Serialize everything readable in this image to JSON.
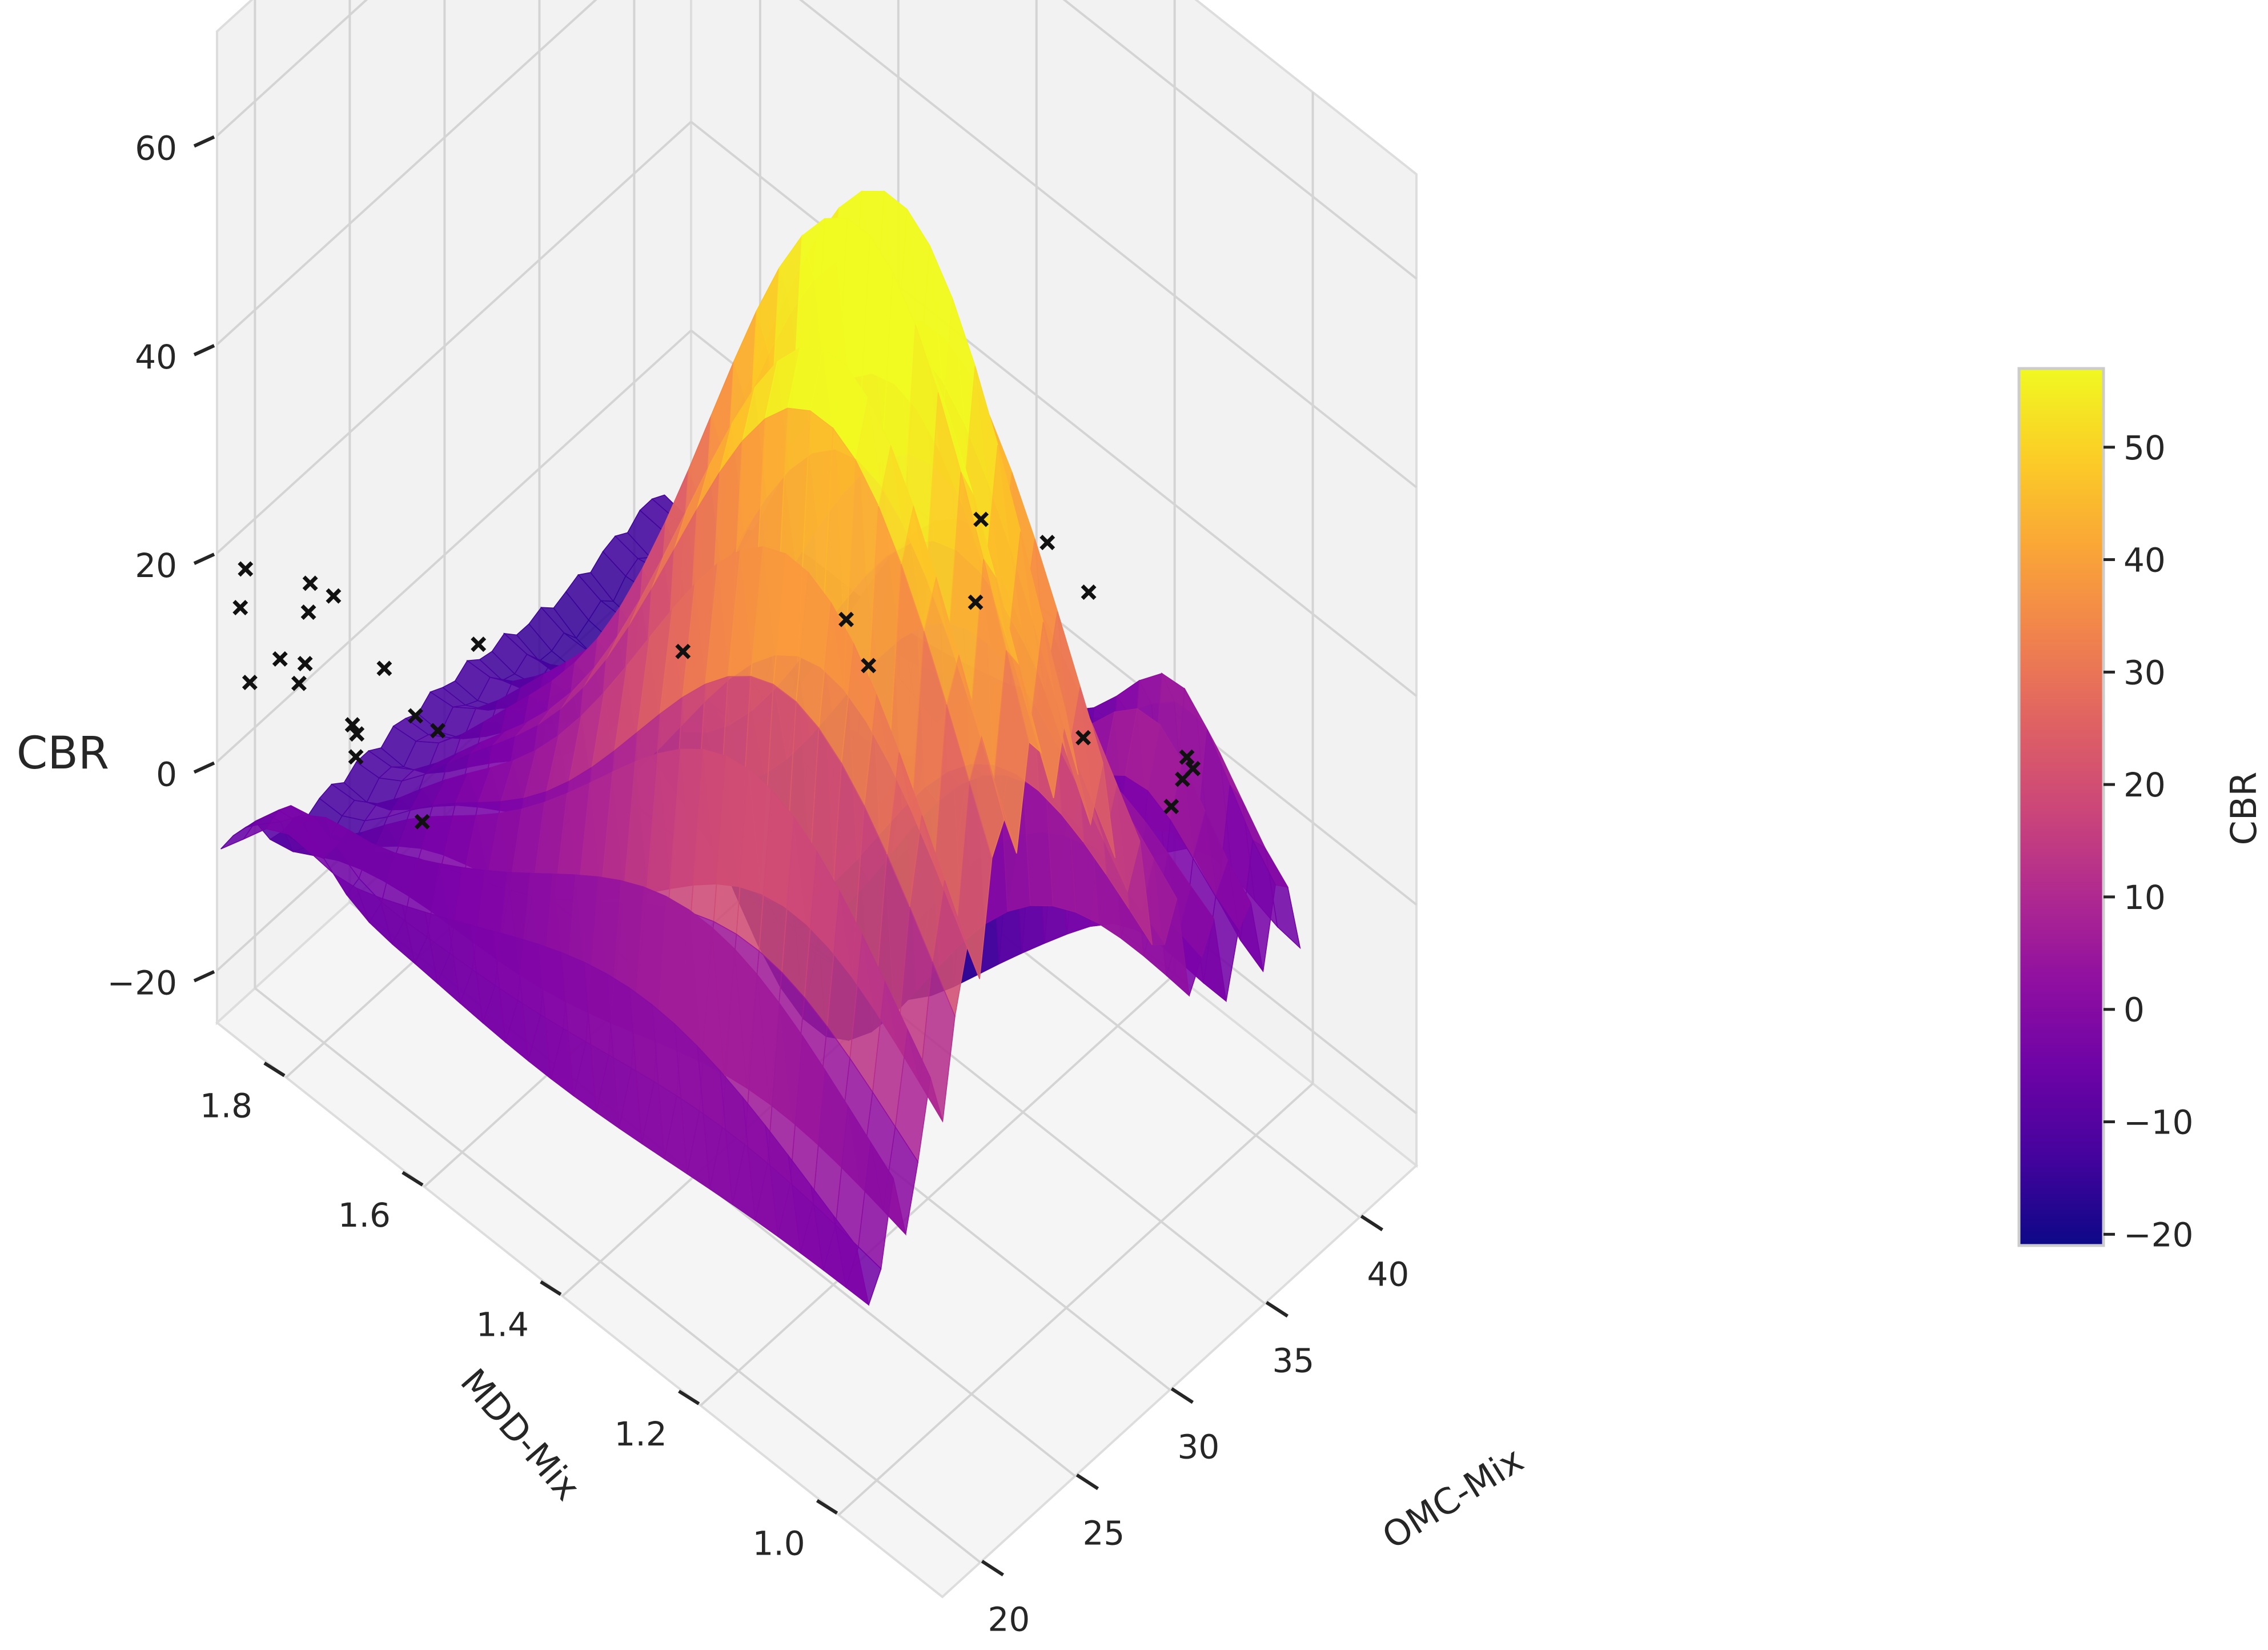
{
  "chart_data": {
    "type": "surface3d",
    "title": "",
    "xlabel": "OMC-Mix",
    "ylabel": "MDD-Mix",
    "zlabel": "CBR",
    "x_ticks": [
      "20",
      "25",
      "30",
      "35",
      "40"
    ],
    "y_ticks": [
      "1.0",
      "1.2",
      "1.4",
      "1.6",
      "1.8"
    ],
    "z_ticks": [
      "−20",
      "0",
      "20",
      "40",
      "60"
    ],
    "xlim": [
      18,
      43
    ],
    "ylim": [
      0.85,
      1.9
    ],
    "zlim": [
      -25,
      70
    ],
    "colormap": "plasma",
    "colorbar": {
      "label": "CBR",
      "ticks": [
        "−20",
        "−10",
        "0",
        "10",
        "20",
        "30",
        "40",
        "50"
      ],
      "range": [
        -21,
        57
      ],
      "placement": "right"
    },
    "surface": {
      "description_of_shape": "dome peaking near OMC 27-30 and MDD 1.2-1.4, dipping at high OMC / mid MDD",
      "peak": {
        "x": 28,
        "y": 1.25,
        "z": 56
      },
      "trough": {
        "x": 36,
        "y": 1.5,
        "z": -21
      }
    },
    "points": [
      {
        "x": 25.5,
        "y": 1.0,
        "z": 58
      },
      {
        "x": 29.0,
        "y": 1.0,
        "z": 50
      },
      {
        "x": 33.0,
        "y": 1.05,
        "z": 36
      },
      {
        "x": 38.5,
        "y": 1.05,
        "z": 10
      },
      {
        "x": 40.0,
        "y": 1.1,
        "z": 6
      },
      {
        "x": 40.5,
        "y": 1.12,
        "z": 2
      },
      {
        "x": 41.0,
        "y": 1.15,
        "z": -3
      },
      {
        "x": 40.0,
        "y": 1.25,
        "z": 0
      },
      {
        "x": 27.5,
        "y": 1.25,
        "z": 32
      },
      {
        "x": 32.5,
        "y": 1.2,
        "z": 28
      },
      {
        "x": 30.5,
        "y": 1.3,
        "z": 20
      },
      {
        "x": 28.0,
        "y": 1.5,
        "z": 15
      },
      {
        "x": 24.5,
        "y": 1.7,
        "z": 11
      },
      {
        "x": 23.0,
        "y": 1.75,
        "z": 4
      },
      {
        "x": 23.5,
        "y": 1.85,
        "z": -6
      },
      {
        "x": 19.0,
        "y": 1.8,
        "z": 13
      },
      {
        "x": 19.5,
        "y": 1.85,
        "z": 10
      },
      {
        "x": 19.0,
        "y": 1.88,
        "z": 7
      },
      {
        "x": 20.5,
        "y": 1.85,
        "z": 6
      },
      {
        "x": 20.0,
        "y": 1.82,
        "z": 18
      },
      {
        "x": 20.5,
        "y": 1.8,
        "z": 17
      },
      {
        "x": 21.0,
        "y": 1.78,
        "z": 4
      },
      {
        "x": 21.5,
        "y": 1.8,
        "z": 3
      },
      {
        "x": 19.5,
        "y": 1.9,
        "z": 16
      },
      {
        "x": 18.5,
        "y": 1.88,
        "z": 15
      },
      {
        "x": 21.0,
        "y": 1.85,
        "z": 12
      },
      {
        "x": 25.0,
        "y": 1.85,
        "z": 0
      },
      {
        "x": 26.0,
        "y": 1.8,
        "z": -5
      },
      {
        "x": 27.0,
        "y": 1.85,
        "z": -18
      }
    ]
  }
}
